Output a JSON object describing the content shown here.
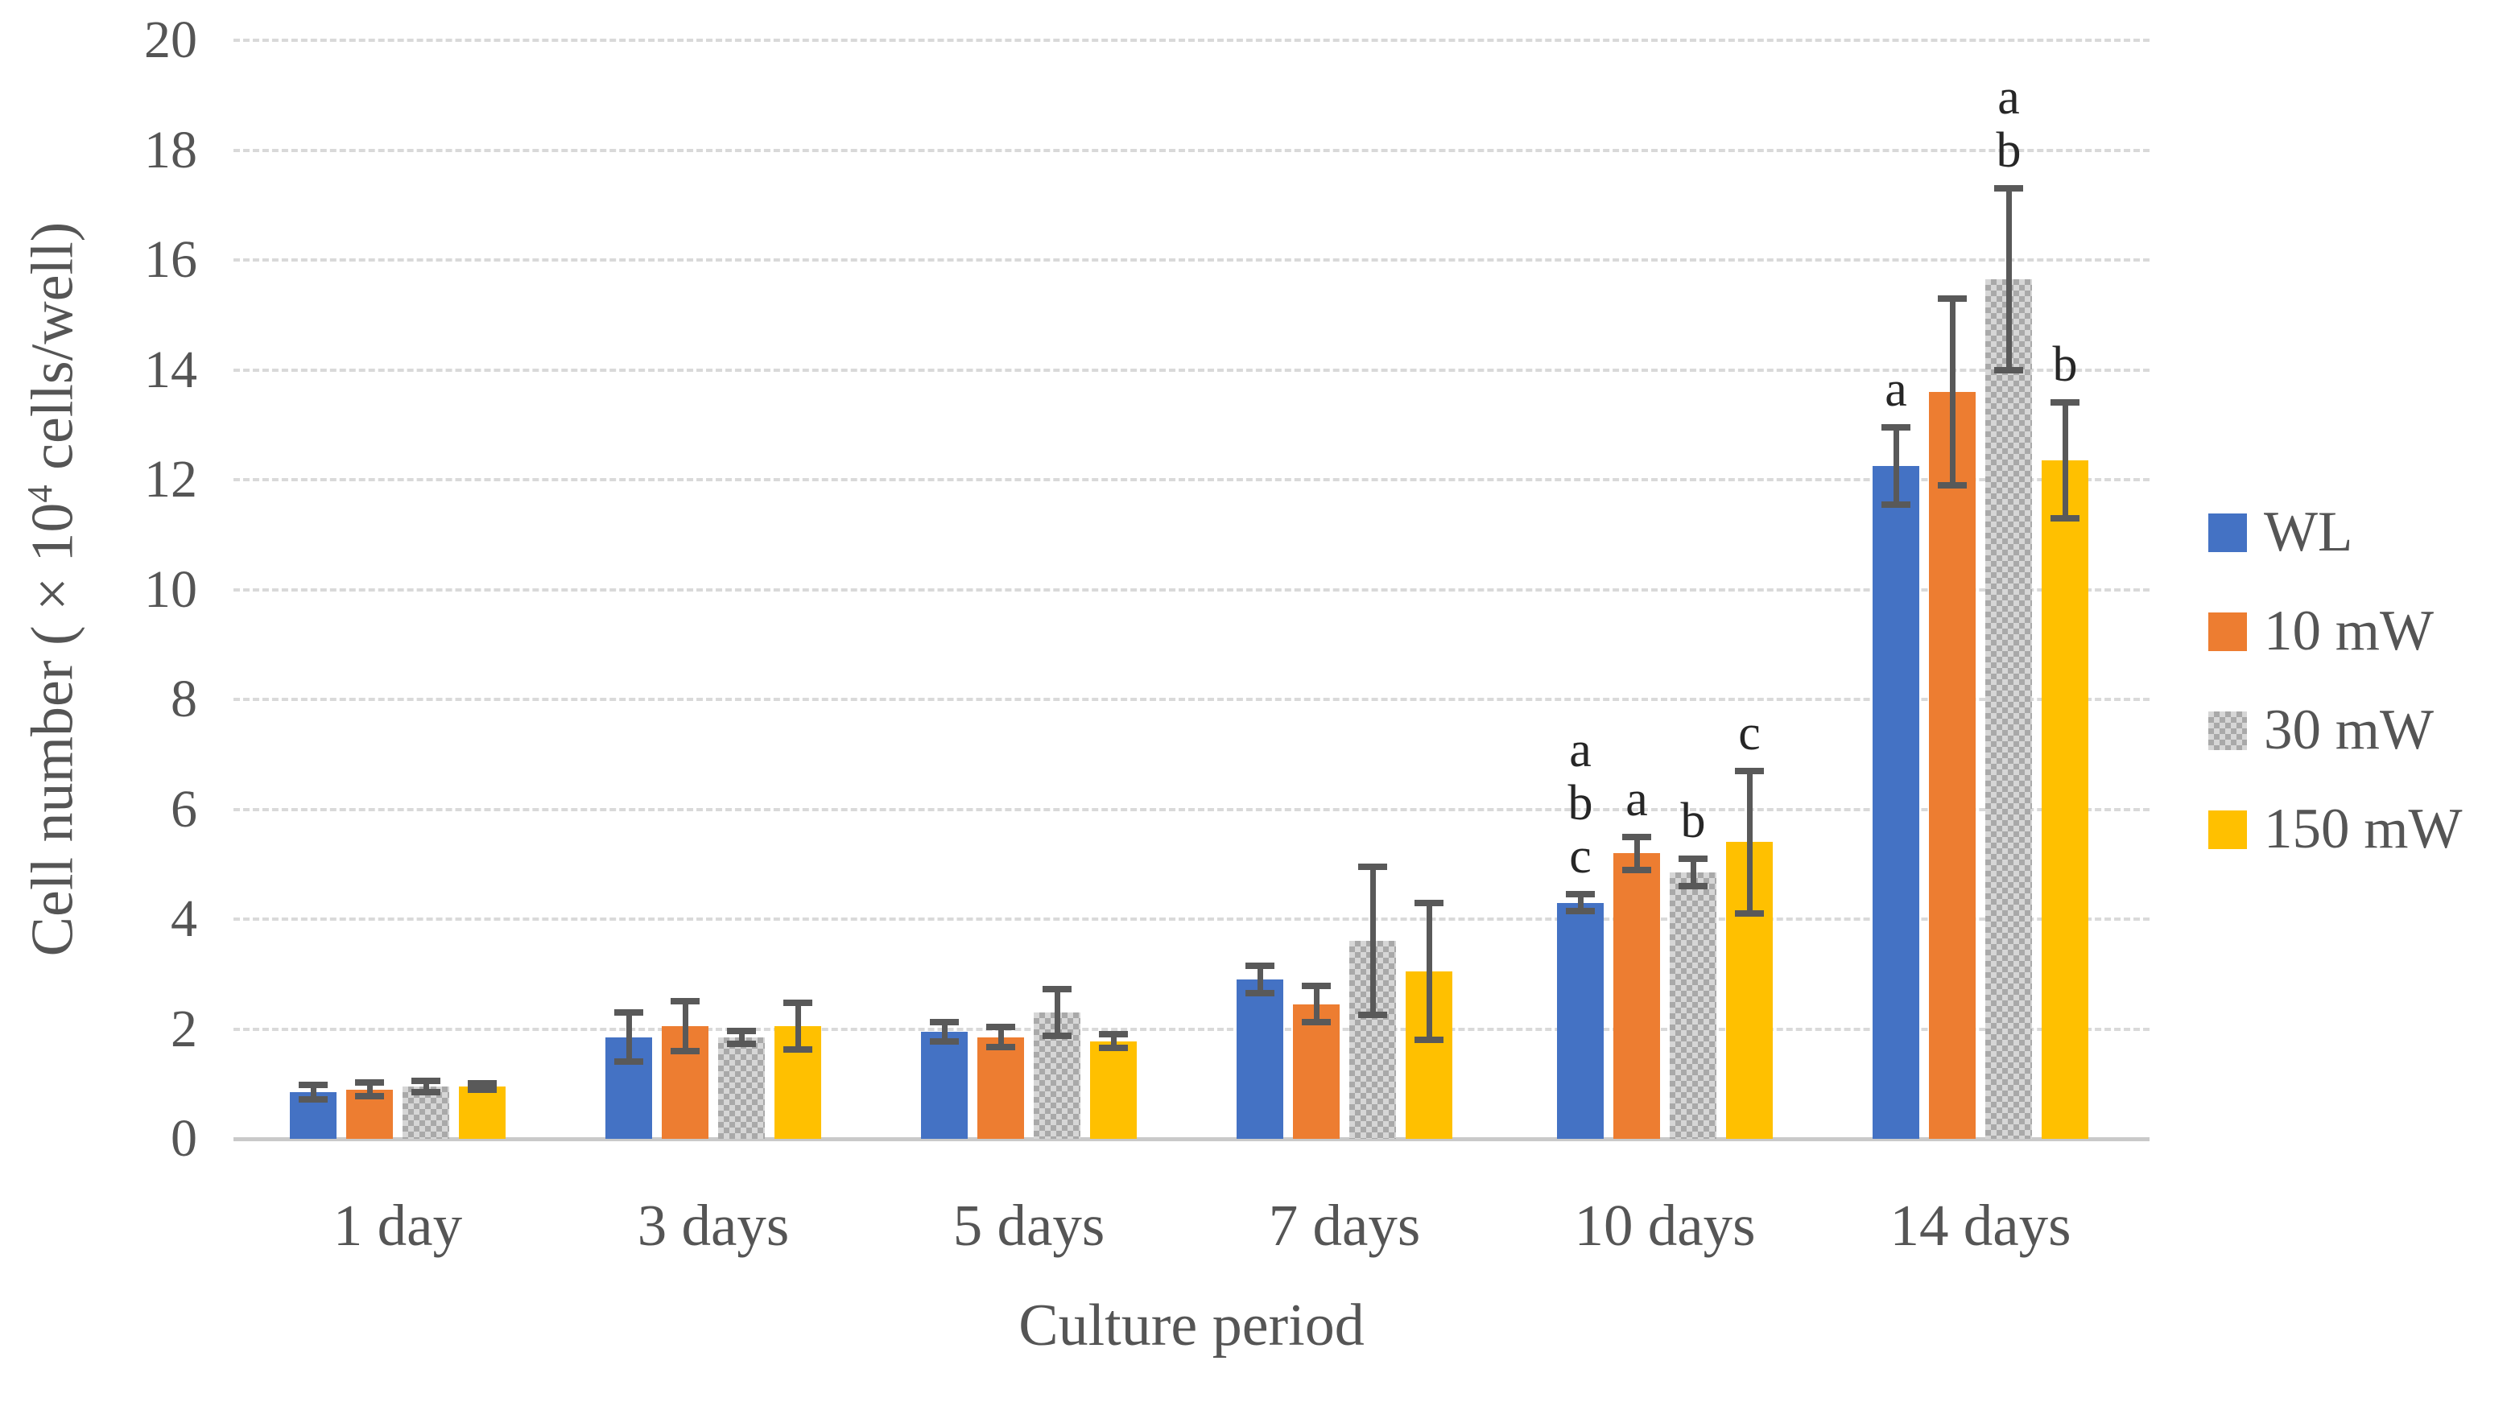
{
  "chart_data": {
    "type": "bar",
    "title": "",
    "xlabel": "Culture period",
    "ylabel_prefix": "Cell number ( × 10",
    "ylabel_sup": "4",
    "ylabel_suffix": " cells/well)",
    "ylim": [
      0,
      20
    ],
    "yticks": [
      0,
      2,
      4,
      6,
      8,
      10,
      12,
      14,
      16,
      18,
      20
    ],
    "grid": true,
    "legend_position": "right",
    "categories": [
      "1 day",
      "3 days",
      "5 days",
      "7 days",
      "10 days",
      "14 days"
    ],
    "series": [
      {
        "name": "WL",
        "color": "#4472C4",
        "pattern": false,
        "values": [
          0.85,
          1.85,
          1.95,
          2.9,
          4.3,
          12.25
        ],
        "errors": [
          0.13,
          0.45,
          0.17,
          0.25,
          0.15,
          0.7
        ],
        "letters": [
          [],
          [],
          [],
          [],
          [
            "a",
            "b",
            "c"
          ],
          [
            "a"
          ]
        ]
      },
      {
        "name": "10 mW",
        "color": "#ED7D31",
        "pattern": false,
        "values": [
          0.9,
          2.05,
          1.85,
          2.45,
          5.2,
          13.6
        ],
        "errors": [
          0.12,
          0.45,
          0.18,
          0.33,
          0.3,
          1.7
        ],
        "letters": [
          [],
          [],
          [],
          [],
          [
            "a"
          ],
          []
        ]
      },
      {
        "name": "30 mW",
        "color": "#A6A6A6",
        "pattern": true,
        "values": [
          0.95,
          1.85,
          2.3,
          3.6,
          4.85,
          15.65
        ],
        "errors": [
          0.1,
          0.12,
          0.43,
          1.35,
          0.25,
          1.65
        ],
        "letters": [
          [],
          [],
          [],
          [],
          [
            "b"
          ],
          [
            "a",
            "b"
          ]
        ]
      },
      {
        "name": "150 mW",
        "color": "#FFC000",
        "pattern": false,
        "values": [
          0.95,
          2.05,
          1.78,
          3.05,
          5.4,
          12.35
        ],
        "errors": [
          0.06,
          0.42,
          0.13,
          1.25,
          1.3,
          1.05
        ],
        "letters": [
          [],
          [],
          [],
          [],
          [
            "c"
          ],
          [
            "b"
          ]
        ]
      }
    ],
    "error_bar_color": "#595959",
    "gridline_color": "#D9D9D9",
    "axis_line_color": "#C9C9C9",
    "tick_text_color": "#555555"
  }
}
